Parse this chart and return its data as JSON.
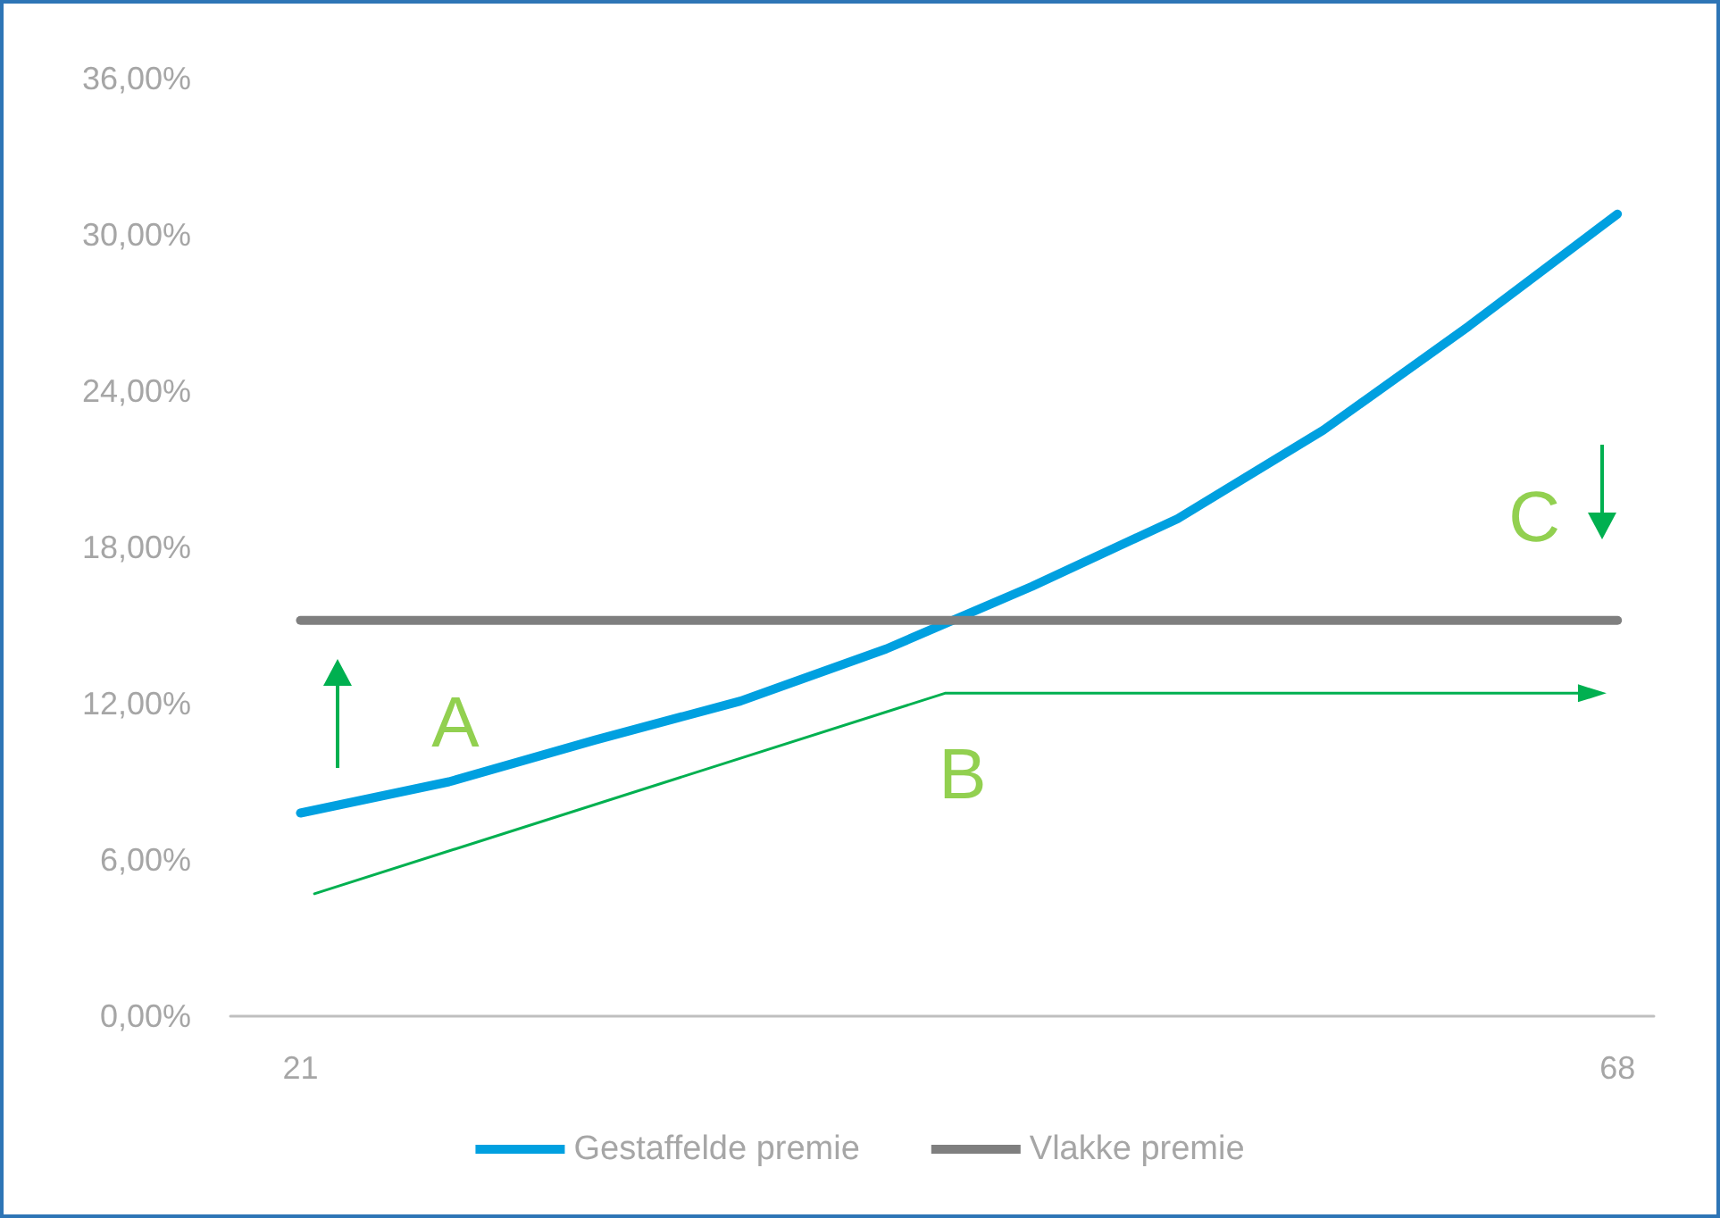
{
  "chart_data": {
    "type": "line",
    "xlim": [
      18.5,
      69.3
    ],
    "xticks": [
      21,
      68
    ],
    "ylim": [
      0,
      36
    ],
    "yticks": [
      {
        "value": 0,
        "label": "0,00%"
      },
      {
        "value": 6,
        "label": "6,00%"
      },
      {
        "value": 12,
        "label": "12,00%"
      },
      {
        "value": 18,
        "label": "18,00%"
      },
      {
        "value": 24,
        "label": "24,00%"
      },
      {
        "value": 30,
        "label": "30,00%"
      },
      {
        "value": 36,
        "label": "36,00%"
      }
    ],
    "series": [
      {
        "name": "Gestaffelde premie",
        "color": "#00a0e0",
        "x": [
          21,
          26.3,
          31.5,
          36.7,
          41.9,
          47.1,
          52.3,
          57.5,
          62.7,
          68
        ],
        "values": [
          7.8,
          9.0,
          10.6,
          12.1,
          14.1,
          16.5,
          19.1,
          22.5,
          26.5,
          30.8
        ]
      },
      {
        "name": "Vlakke premie",
        "color": "#7f7f7f",
        "x": [
          21,
          68
        ],
        "values": [
          15.2,
          15.2
        ]
      },
      {
        "color": "#00b050",
        "x": [
          21.5,
          44.0,
          67.1
        ],
        "values": [
          4.7,
          12.4,
          12.4
        ]
      }
    ],
    "annotations": [
      "A",
      "B",
      "C"
    ],
    "grid": false,
    "legend": "bottom",
    "marker": "none",
    "line_style": "solid"
  }
}
